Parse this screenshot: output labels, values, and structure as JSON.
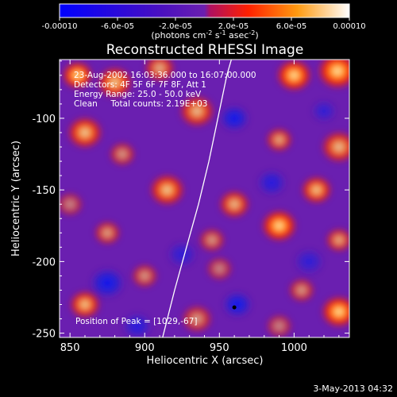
{
  "colorbar": {
    "tick_labels": [
      "-0.00010",
      "-6.0e-05",
      "-2.0e-05",
      "2.0e-05",
      "6.0e-05",
      "0.00010"
    ],
    "tick_values": [
      -0.0001,
      -6e-05,
      -2e-05,
      2e-05,
      6e-05,
      0.0001
    ],
    "range": [
      -0.0001,
      0.0001
    ],
    "unit_main": "(photons cm",
    "unit_sup1": "-2",
    "unit_mid": " s",
    "unit_sup2": "-1",
    "unit_mid2": " asec",
    "unit_sup3": "-2",
    "unit_end": ")",
    "colors": [
      "#0000ff",
      "#3300cc",
      "#6a1fb0",
      "#ff2000",
      "#ff9a10",
      "#ffffff"
    ]
  },
  "chart_data": {
    "type": "heatmap",
    "title": "Reconstructed RHESSI Image",
    "xlabel": "Heliocentric X (arcsec)",
    "ylabel": "Heliocentric Y (arcsec)",
    "xlim": [
      843,
      1037
    ],
    "ylim": [
      -253,
      -59
    ],
    "x_ticks": [
      850,
      900,
      950,
      1000
    ],
    "y_ticks": [
      -100,
      -150,
      -200,
      -250
    ],
    "info_lines": [
      "23-Aug-2002 16:03:36.000 to 16:07:00.000",
      "Detectors: 4F 5F 6F 7F 8F, Att 1",
      "Energy Range: 25.0 - 50.0 keV",
      "Clean     Total counts: 2.19E+03"
    ],
    "peak_label": "Position of Peak = [1029,-67]",
    "peak": [
      1029,
      -67
    ],
    "limb_curve": [
      [
        912,
        -253
      ],
      [
        920,
        -220
      ],
      [
        928,
        -190
      ],
      [
        936,
        -160
      ],
      [
        943,
        -130
      ],
      [
        949,
        -100
      ],
      [
        955,
        -70
      ],
      [
        958,
        -59
      ]
    ],
    "hot_blobs": [
      [
        855,
        -70,
        7,
        1.0
      ],
      [
        880,
        -75,
        8,
        0.9
      ],
      [
        910,
        -65,
        7,
        0.8
      ],
      [
        1000,
        -70,
        8,
        1.0
      ],
      [
        1029,
        -67,
        9,
        1.0
      ],
      [
        860,
        -110,
        8,
        0.9
      ],
      [
        885,
        -125,
        6,
        0.7
      ],
      [
        935,
        -95,
        8,
        0.85
      ],
      [
        990,
        -115,
        6,
        0.8
      ],
      [
        1030,
        -120,
        8,
        0.85
      ],
      [
        850,
        -160,
        6,
        0.6
      ],
      [
        915,
        -150,
        8,
        0.9
      ],
      [
        960,
        -160,
        7,
        0.85
      ],
      [
        1015,
        -150,
        7,
        0.9
      ],
      [
        875,
        -180,
        6,
        0.75
      ],
      [
        945,
        -185,
        6,
        0.7
      ],
      [
        990,
        -175,
        8,
        1.0
      ],
      [
        1030,
        -185,
        6,
        0.8
      ],
      [
        900,
        -210,
        6,
        0.7
      ],
      [
        950,
        -205,
        6,
        0.6
      ],
      [
        1005,
        -220,
        6,
        0.7
      ],
      [
        860,
        -230,
        7,
        0.9
      ],
      [
        1030,
        -235,
        8,
        1.0
      ],
      [
        935,
        -240,
        7,
        0.7
      ],
      [
        990,
        -245,
        6,
        0.6
      ]
    ],
    "cold_blobs": [
      [
        960,
        -100,
        6,
        0.9
      ],
      [
        875,
        -215,
        7,
        0.9
      ],
      [
        962,
        -230,
        6,
        0.9
      ],
      [
        985,
        -145,
        6,
        0.7
      ],
      [
        925,
        -195,
        6,
        0.6
      ],
      [
        1010,
        -200,
        6,
        0.6
      ],
      [
        895,
        -245,
        6,
        0.7
      ],
      [
        1020,
        -95,
        5,
        0.6
      ]
    ]
  },
  "footer": {
    "timestamp": "3-May-2013 04:32"
  }
}
